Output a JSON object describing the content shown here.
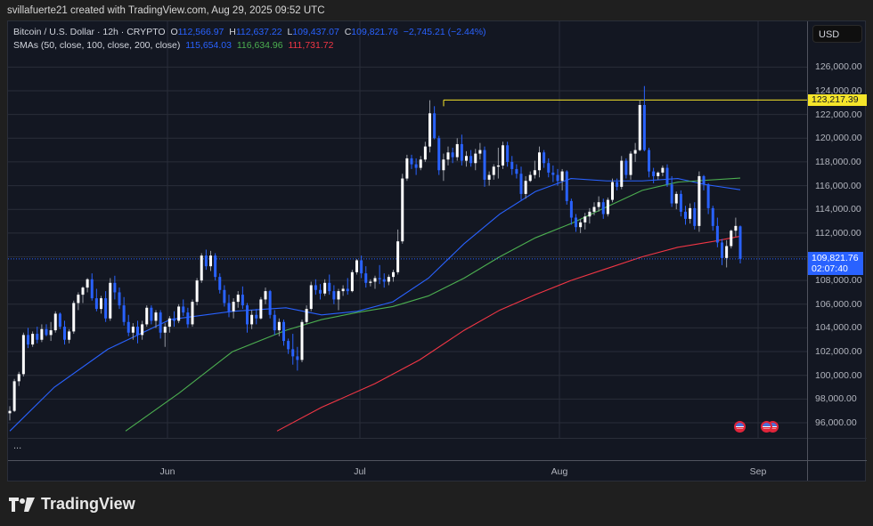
{
  "attribution": "svillafuerte21 created with TradingView.com, Aug 29, 2025 09:52 UTC",
  "legend": {
    "symbol": "Bitcoin / U.S. Dollar · 12h · CRYPTO",
    "o_label": "O",
    "o": "112,566.97",
    "h_label": "H",
    "h": "112,637.22",
    "l_label": "L",
    "l": "109,437.07",
    "c_label": "C",
    "c": "109,821.76",
    "change": "−2,745.21 (−2.44%)",
    "sma_label": "SMAs (50, close, 100, close, 200, close)",
    "sma50": "115,654.03",
    "sma100": "116,634.96",
    "sma200": "111,731.72"
  },
  "price_axis": {
    "currency": "USD",
    "ticks": [
      "126,000.00",
      "124,000.00",
      "122,000.00",
      "120,000.00",
      "118,000.00",
      "116,000.00",
      "114,000.00",
      "112,000.00",
      "110,000.00",
      "108,000.00",
      "106,000.00",
      "104,000.00",
      "102,000.00",
      "100,000.00",
      "98,000.00",
      "96,000.00"
    ],
    "hline_label": "123,217.39",
    "last_price_label": "109,821.76",
    "countdown": "02:07:40"
  },
  "time_axis": {
    "labels": [
      "Jun",
      "Jul",
      "Aug",
      "Sep"
    ]
  },
  "pane2": {
    "collapsed_label": "..."
  },
  "footer": {
    "brand": "TradingView"
  },
  "colors": {
    "up": "#ffffff",
    "down": "#2962ff",
    "sma50": "#2962ff",
    "sma100": "#4caf50",
    "sma200": "#f23645",
    "hline": "#f5e52a",
    "bg": "#131722",
    "grid": "#2a2e39"
  },
  "chart_data": {
    "type": "candlestick",
    "title": "Bitcoin / U.S. Dollar · 12h · CRYPTO",
    "ylabel": "USD",
    "ylim": [
      94500,
      127600
    ],
    "x_start_label": "~May 7, 2025",
    "x_ticks": [
      "Jun",
      "Jul",
      "Aug",
      "Sep"
    ],
    "horizontal_line": 123217.39,
    "last_price": 109821.76,
    "candles_ohlc": [
      [
        96800,
        97400,
        96200,
        97000
      ],
      [
        97000,
        99700,
        96900,
        99500
      ],
      [
        99500,
        100300,
        99100,
        100100
      ],
      [
        100100,
        103600,
        99900,
        103400
      ],
      [
        103400,
        104000,
        102300,
        102600
      ],
      [
        102600,
        103700,
        102400,
        103500
      ],
      [
        103500,
        104100,
        102700,
        103000
      ],
      [
        103000,
        104300,
        102800,
        103900
      ],
      [
        103900,
        104300,
        103300,
        103400
      ],
      [
        103400,
        104500,
        102900,
        103800
      ],
      [
        103800,
        105400,
        103600,
        105200
      ],
      [
        105200,
        105300,
        103900,
        104100
      ],
      [
        104100,
        104600,
        102600,
        103000
      ],
      [
        103000,
        103900,
        102700,
        103700
      ],
      [
        103700,
        106300,
        103500,
        106100
      ],
      [
        106100,
        107000,
        105500,
        106800
      ],
      [
        106800,
        107500,
        106100,
        107400
      ],
      [
        107400,
        108200,
        107000,
        108100
      ],
      [
        108100,
        108600,
        106300,
        106500
      ],
      [
        106500,
        107300,
        105400,
        105600
      ],
      [
        105600,
        106700,
        105200,
        106500
      ],
      [
        106500,
        107100,
        104500,
        104800
      ],
      [
        104800,
        108200,
        104600,
        107800
      ],
      [
        107800,
        108400,
        106400,
        107000
      ],
      [
        107000,
        107400,
        105600,
        105900
      ],
      [
        105900,
        106600,
        104200,
        104500
      ],
      [
        104500,
        105100,
        103300,
        103600
      ],
      [
        103600,
        104400,
        103000,
        104100
      ],
      [
        104100,
        104600,
        102700,
        103400
      ],
      [
        103400,
        104600,
        103000,
        104300
      ],
      [
        104300,
        105900,
        104100,
        105700
      ],
      [
        105700,
        105900,
        104300,
        104600
      ],
      [
        104600,
        105500,
        104000,
        105300
      ],
      [
        105300,
        105500,
        103100,
        103600
      ],
      [
        103600,
        104400,
        102400,
        104100
      ],
      [
        104100,
        105000,
        103600,
        104800
      ],
      [
        104800,
        105400,
        104100,
        104600
      ],
      [
        104600,
        106000,
        104400,
        105800
      ],
      [
        105800,
        106400,
        105000,
        105300
      ],
      [
        105300,
        105700,
        104000,
        104300
      ],
      [
        104300,
        106400,
        104100,
        106200
      ],
      [
        106200,
        108200,
        105900,
        108000
      ],
      [
        108000,
        110300,
        107800,
        110100
      ],
      [
        110100,
        110600,
        108900,
        109200
      ],
      [
        109200,
        110500,
        108800,
        110100
      ],
      [
        110100,
        110300,
        108000,
        108300
      ],
      [
        108300,
        108600,
        106900,
        107200
      ],
      [
        107200,
        107600,
        105800,
        106100
      ],
      [
        106100,
        106800,
        104900,
        105400
      ],
      [
        105400,
        106500,
        104800,
        106200
      ],
      [
        106200,
        107100,
        105700,
        106800
      ],
      [
        106800,
        107500,
        105600,
        105900
      ],
      [
        105900,
        106100,
        103600,
        104300
      ],
      [
        104300,
        105500,
        103900,
        105100
      ],
      [
        105100,
        105600,
        104300,
        104800
      ],
      [
        104800,
        106600,
        104700,
        106400
      ],
      [
        106400,
        107400,
        106000,
        107100
      ],
      [
        107100,
        107200,
        104800,
        105100
      ],
      [
        105100,
        105500,
        103400,
        103800
      ],
      [
        103800,
        104800,
        103300,
        104500
      ],
      [
        104500,
        104700,
        102500,
        102900
      ],
      [
        102900,
        103100,
        101800,
        102200
      ],
      [
        102200,
        103500,
        100900,
        101600
      ],
      [
        101600,
        102400,
        100400,
        101300
      ],
      [
        101300,
        104700,
        101100,
        104500
      ],
      [
        104500,
        105900,
        104300,
        105600
      ],
      [
        105600,
        107900,
        105400,
        107600
      ],
      [
        107600,
        108100,
        106800,
        107200
      ],
      [
        107200,
        107700,
        106400,
        106900
      ],
      [
        106900,
        108100,
        106700,
        107800
      ],
      [
        107800,
        108500,
        106800,
        107100
      ],
      [
        107100,
        107600,
        106000,
        106400
      ],
      [
        106400,
        107300,
        105500,
        107100
      ],
      [
        107100,
        107600,
        106700,
        107300
      ],
      [
        107300,
        108200,
        106800,
        107100
      ],
      [
        107100,
        108900,
        107000,
        108700
      ],
      [
        108700,
        109800,
        108500,
        109700
      ],
      [
        109700,
        110100,
        108200,
        108600
      ],
      [
        108600,
        109200,
        107400,
        107800
      ],
      [
        107800,
        108100,
        107500,
        107900
      ],
      [
        107900,
        108400,
        107300,
        108200
      ],
      [
        108200,
        109300,
        107700,
        108100
      ],
      [
        108100,
        108600,
        107400,
        107900
      ],
      [
        107900,
        108500,
        107600,
        108300
      ],
      [
        108300,
        108900,
        107900,
        108700
      ],
      [
        108700,
        112300,
        108500,
        111300
      ],
      [
        111300,
        117000,
        111100,
        116600
      ],
      [
        116600,
        118600,
        116400,
        118300
      ],
      [
        118300,
        118600,
        117400,
        117800
      ],
      [
        117800,
        118300,
        116900,
        117500
      ],
      [
        117500,
        118500,
        117300,
        118200
      ],
      [
        118200,
        119700,
        118000,
        119300
      ],
      [
        119300,
        123200,
        118800,
        122100
      ],
      [
        122100,
        122700,
        119900,
        120000
      ],
      [
        120000,
        120200,
        116900,
        117300
      ],
      [
        117300,
        118700,
        116400,
        118200
      ],
      [
        118200,
        119300,
        117700,
        118800
      ],
      [
        118800,
        119200,
        117900,
        118400
      ],
      [
        118400,
        120000,
        118100,
        119500
      ],
      [
        119500,
        120300,
        117700,
        118100
      ],
      [
        118100,
        118900,
        117600,
        118500
      ],
      [
        118500,
        119000,
        117600,
        117900
      ],
      [
        117900,
        119100,
        117300,
        118700
      ],
      [
        118700,
        119600,
        118200,
        119000
      ],
      [
        119000,
        119300,
        115900,
        116500
      ],
      [
        116500,
        117200,
        116000,
        116900
      ],
      [
        116900,
        117800,
        116500,
        117600
      ],
      [
        117600,
        119200,
        116600,
        117700
      ],
      [
        117700,
        119700,
        117400,
        119400
      ],
      [
        119400,
        119700,
        117600,
        118000
      ],
      [
        118000,
        118500,
        116900,
        117400
      ],
      [
        117400,
        117800,
        116600,
        117000
      ],
      [
        117000,
        117600,
        114800,
        115300
      ],
      [
        115300,
        116800,
        114900,
        116400
      ],
      [
        116400,
        117200,
        116300,
        116900
      ],
      [
        116900,
        118100,
        116600,
        117300
      ],
      [
        117300,
        119300,
        116700,
        118800
      ],
      [
        118800,
        119000,
        117500,
        117900
      ],
      [
        117900,
        118300,
        116700,
        117100
      ],
      [
        117100,
        117700,
        116300,
        116900
      ],
      [
        116900,
        117400,
        116000,
        116400
      ],
      [
        116400,
        117400,
        115600,
        117200
      ],
      [
        117200,
        117300,
        114400,
        114700
      ],
      [
        114700,
        114900,
        112700,
        113300
      ],
      [
        113300,
        113600,
        112100,
        112500
      ],
      [
        112500,
        113200,
        112000,
        112900
      ],
      [
        112900,
        113700,
        112300,
        113400
      ],
      [
        113400,
        114100,
        112800,
        113800
      ],
      [
        113800,
        114600,
        113500,
        114200
      ],
      [
        114200,
        115100,
        113800,
        114600
      ],
      [
        114600,
        114900,
        113200,
        113600
      ],
      [
        113600,
        115000,
        113400,
        114800
      ],
      [
        114800,
        116600,
        114600,
        116300
      ],
      [
        116300,
        116600,
        115600,
        115900
      ],
      [
        115900,
        118500,
        115700,
        118100
      ],
      [
        118100,
        118300,
        116600,
        116900
      ],
      [
        116900,
        118900,
        116500,
        118700
      ],
      [
        118700,
        119600,
        118000,
        119000
      ],
      [
        119000,
        123200,
        118900,
        122800
      ],
      [
        122800,
        124400,
        118900,
        119000
      ],
      [
        119000,
        119200,
        116700,
        117200
      ],
      [
        117200,
        117500,
        116200,
        116800
      ],
      [
        116800,
        117200,
        116500,
        117100
      ],
      [
        117100,
        117700,
        116800,
        117500
      ],
      [
        117500,
        117800,
        115900,
        116100
      ],
      [
        116100,
        116800,
        114200,
        114500
      ],
      [
        114500,
        115500,
        114000,
        115300
      ],
      [
        115300,
        115600,
        113400,
        113800
      ],
      [
        113800,
        114300,
        112700,
        113200
      ],
      [
        113200,
        114500,
        112800,
        114100
      ],
      [
        114100,
        114600,
        112300,
        112600
      ],
      [
        112600,
        117200,
        112100,
        116800
      ],
      [
        116800,
        116900,
        115600,
        116100
      ],
      [
        116100,
        116200,
        113600,
        114100
      ],
      [
        114100,
        114300,
        112200,
        112600
      ],
      [
        112600,
        113300,
        110800,
        111200
      ],
      [
        111200,
        111500,
        109300,
        109900
      ],
      [
        109900,
        111400,
        109100,
        110900
      ],
      [
        110900,
        112300,
        110700,
        112200
      ],
      [
        112200,
        113300,
        111700,
        112600
      ],
      [
        112566.97,
        112637.22,
        109437.07,
        109821.76
      ]
    ],
    "series": [
      {
        "name": "SMA 50",
        "color": "#2962ff",
        "last": 115654.03,
        "points": [
          [
            10,
            95300
          ],
          [
            60,
            99000
          ],
          [
            120,
            102200
          ],
          [
            190,
            104700
          ],
          [
            260,
            105400
          ],
          [
            320,
            105700
          ],
          [
            360,
            105100
          ],
          [
            400,
            105400
          ],
          [
            440,
            106200
          ],
          [
            480,
            108200
          ],
          [
            520,
            111100
          ],
          [
            560,
            113600
          ],
          [
            600,
            115500
          ],
          [
            640,
            116600
          ],
          [
            680,
            116400
          ],
          [
            720,
            116400
          ],
          [
            760,
            116600
          ],
          [
            790,
            116100
          ],
          [
            830,
            115654
          ]
        ]
      },
      {
        "name": "SMA 100",
        "color": "#4caf50",
        "last": 116634.96,
        "points": [
          [
            140,
            95300
          ],
          [
            200,
            98500
          ],
          [
            260,
            102000
          ],
          [
            320,
            103800
          ],
          [
            360,
            104700
          ],
          [
            400,
            105300
          ],
          [
            440,
            105800
          ],
          [
            480,
            106700
          ],
          [
            520,
            108200
          ],
          [
            560,
            110000
          ],
          [
            600,
            111600
          ],
          [
            640,
            112800
          ],
          [
            680,
            114200
          ],
          [
            720,
            115600
          ],
          [
            760,
            116300
          ],
          [
            830,
            116635
          ]
        ]
      },
      {
        "name": "SMA 200",
        "color": "#f23645",
        "last": 111731.72,
        "points": [
          [
            310,
            95300
          ],
          [
            360,
            97300
          ],
          [
            420,
            99300
          ],
          [
            470,
            101300
          ],
          [
            520,
            103800
          ],
          [
            560,
            105500
          ],
          [
            600,
            106800
          ],
          [
            640,
            108000
          ],
          [
            680,
            109000
          ],
          [
            720,
            110000
          ],
          [
            760,
            110800
          ],
          [
            800,
            111300
          ],
          [
            830,
            111732
          ]
        ]
      }
    ]
  }
}
